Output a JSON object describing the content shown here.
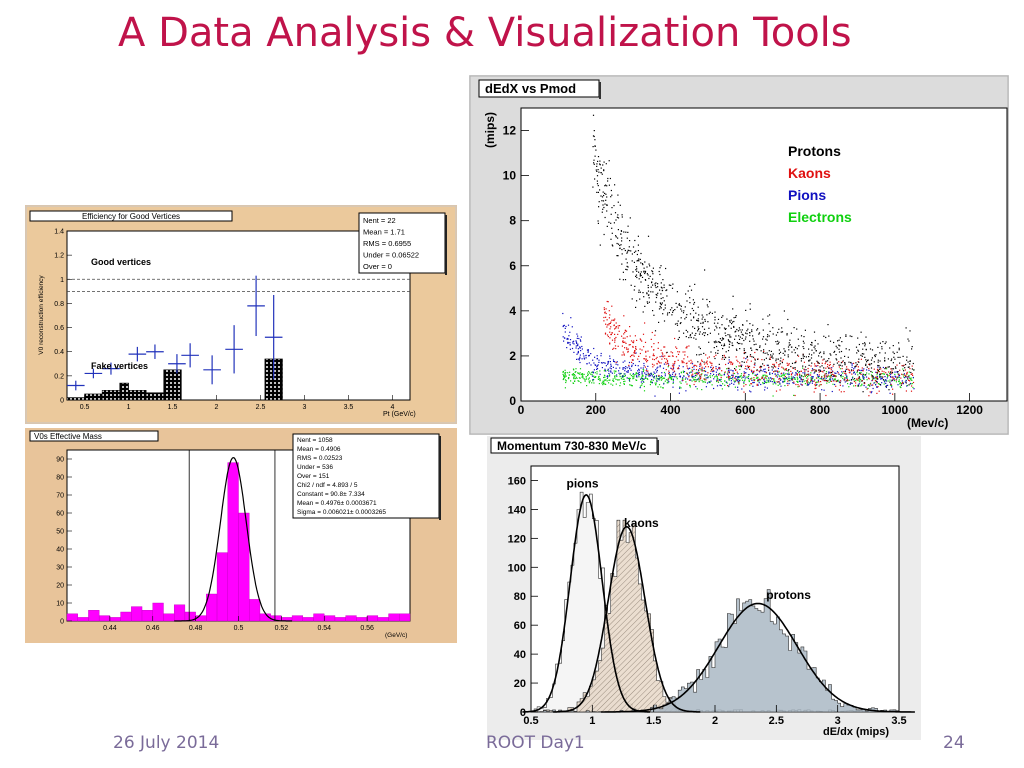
{
  "slide": {
    "title": "A Data Analysis & Visualization Tools",
    "footer_date": "26 July 2014",
    "footer_center": "ROOT Day1",
    "page_number": "24",
    "title_color": "#c0134a"
  },
  "chart_data": [
    {
      "id": "efficiency",
      "type": "bar",
      "title": "Efficiency for Good Vertices",
      "ylabel": "V0 reconstruction efficiency",
      "xlabel": "Pt (GeV/c)",
      "xlim": [
        0.3,
        4.2
      ],
      "ylim": [
        0,
        1.4
      ],
      "xticks": [
        0.5,
        1,
        1.5,
        2,
        2.5,
        3,
        3.5,
        4
      ],
      "yticks": [
        0,
        0.2,
        0.4,
        0.6,
        0.8,
        1,
        1.2,
        1.4
      ],
      "annotations": [
        "Good vertices",
        "Fake vertices"
      ],
      "stats": [
        "Nent = 22",
        "Mean = 1.71",
        "RMS = 0.6955",
        "Under = 0.06522",
        "Over = 0"
      ],
      "reference_lines": [
        1.0,
        0.9
      ],
      "series": [
        {
          "name": "Good vertices",
          "kind": "errorbars",
          "color": "#2233bb",
          "x": [
            0.4,
            0.6,
            0.8,
            1.1,
            1.3,
            1.55,
            1.7,
            1.95,
            2.2,
            2.45,
            2.65
          ],
          "xerr": [
            0.1,
            0.1,
            0.1,
            0.1,
            0.1,
            0.1,
            0.1,
            0.1,
            0.1,
            0.1,
            0.1
          ],
          "y": [
            0.12,
            0.22,
            0.26,
            0.38,
            0.4,
            0.3,
            0.37,
            0.25,
            0.42,
            0.78,
            0.52
          ],
          "yerr": [
            0.04,
            0.04,
            0.05,
            0.06,
            0.06,
            0.08,
            0.1,
            0.12,
            0.2,
            0.25,
            0.35
          ]
        },
        {
          "name": "Fake vertices",
          "kind": "hist",
          "edges": [
            0.3,
            0.5,
            0.7,
            0.9,
            1.0,
            1.2,
            1.4,
            1.6,
            1.8,
            2.55,
            2.75,
            4.2
          ],
          "values": [
            0.02,
            0.05,
            0.08,
            0.14,
            0.08,
            0.06,
            0.25,
            0,
            0,
            0.34,
            0
          ]
        }
      ]
    },
    {
      "id": "v0s-mass",
      "type": "bar",
      "title": "V0s Effective Mass",
      "xlabel": "(GeV/c)",
      "xlim": [
        0.42,
        0.58
      ],
      "ylim": [
        0,
        95
      ],
      "xticks": [
        0.44,
        0.46,
        0.48,
        0.5,
        0.52,
        0.54,
        0.56
      ],
      "yticks": [
        0,
        10,
        20,
        30,
        40,
        50,
        60,
        70,
        80,
        90
      ],
      "stats": [
        "Nent = 1058",
        "Mean = 0.4906",
        "RMS = 0.02523",
        "Under = 536",
        "Over = 151",
        "Chi2 / ndf = 4.893 / 5",
        "Constant = 90.8± 7.334",
        "Mean = 0.4976± 0.0003671",
        "Sigma = 0.006021± 0.0003265"
      ],
      "vlines": [
        0.477,
        0.517
      ],
      "fit": {
        "constant": 90.8,
        "mean": 0.4976,
        "sigma": 0.006021
      },
      "edges": [
        0.42,
        0.425,
        0.43,
        0.435,
        0.44,
        0.445,
        0.45,
        0.455,
        0.46,
        0.465,
        0.47,
        0.475,
        0.48,
        0.485,
        0.49,
        0.495,
        0.5,
        0.505,
        0.51,
        0.515,
        0.52,
        0.525,
        0.53,
        0.535,
        0.54,
        0.545,
        0.55,
        0.555,
        0.56,
        0.565,
        0.57,
        0.575,
        0.58
      ],
      "values": [
        4,
        2,
        6,
        3,
        2,
        5,
        8,
        6,
        10,
        4,
        9,
        5,
        3,
        15,
        38,
        88,
        60,
        12,
        4,
        3,
        2,
        3,
        2,
        4,
        3,
        2,
        3,
        2,
        3,
        2,
        4,
        4
      ]
    },
    {
      "id": "dedx-pmod",
      "type": "scatter",
      "title": "dEdX vs Pmod",
      "ylabel": "(mips)",
      "xlabel": "(Mev/c)",
      "xlim": [
        0,
        1300
      ],
      "ylim": [
        0,
        13
      ],
      "xticks": [
        0,
        200,
        400,
        600,
        800,
        1000,
        1200
      ],
      "yticks": [
        0,
        2,
        4,
        6,
        8,
        10,
        12
      ],
      "legend_position": "top-right",
      "series": [
        {
          "name": "Protons",
          "color": "#000000",
          "band": {
            "a": 1,
            "b": 10.5,
            "x0": 150,
            "c": 1.6,
            "xmin": 190,
            "xmax": 1050,
            "spread": 0.45
          },
          "count": 950
        },
        {
          "name": "Kaons",
          "color": "#e01010",
          "band": {
            "a": 1,
            "b": 2.2,
            "x0": 200,
            "c": 1.9,
            "xmin": 220,
            "xmax": 1050,
            "spread": 0.3
          },
          "count": 650
        },
        {
          "name": "Pions",
          "color": "#1010c0",
          "band": {
            "a": 1,
            "b": 1.3,
            "x0": 110,
            "c": 1.9,
            "xmin": 110,
            "xmax": 1050,
            "spread": 0.22
          },
          "count": 650
        },
        {
          "name": "Electrons",
          "color": "#10d010",
          "band": {
            "a": 1,
            "b": 0.1,
            "x0": 110,
            "c": 1.0,
            "xmin": 110,
            "xmax": 1050,
            "spread": 0.16
          },
          "count": 700
        }
      ]
    },
    {
      "id": "momentum-slice",
      "type": "bar",
      "title": "Momentum 730-830 MeV/c",
      "xlabel": "dE/dx (mips)",
      "xlim": [
        0.5,
        3.5
      ],
      "ylim": [
        0,
        170
      ],
      "xticks": [
        0.5,
        1,
        1.5,
        2,
        2.5,
        3,
        3.5
      ],
      "yticks": [
        0,
        20,
        40,
        60,
        80,
        100,
        120,
        140,
        160
      ],
      "series": [
        {
          "name": "pions",
          "fill": "#f0f0f0",
          "mean": 0.95,
          "sigma": 0.13,
          "amp": 150
        },
        {
          "name": "kaons",
          "fill": "#e7d8c8",
          "mean": 1.28,
          "sigma": 0.15,
          "amp": 128
        },
        {
          "name": "protons",
          "fill": "#aab8c4",
          "mean": 2.35,
          "sigma": 0.32,
          "amp": 75
        }
      ]
    }
  ]
}
